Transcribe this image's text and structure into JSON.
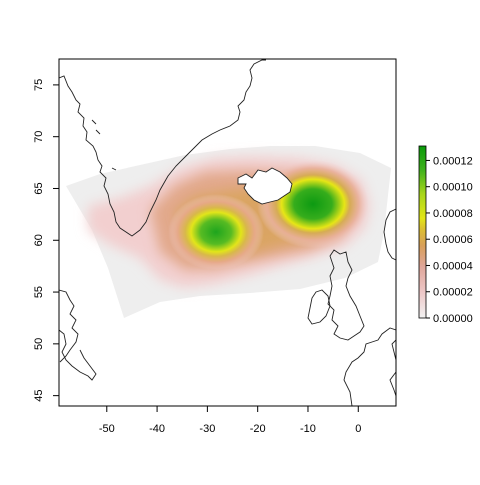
{
  "map": {
    "x_axis": {
      "ticks": [
        {
          "value": -50,
          "label": "-50"
        },
        {
          "value": -40,
          "label": "-40"
        },
        {
          "value": -30,
          "label": "-30"
        },
        {
          "value": -20,
          "label": "-20"
        },
        {
          "value": -10,
          "label": "-10"
        },
        {
          "value": 0,
          "label": "0"
        }
      ]
    },
    "y_axis": {
      "ticks": [
        {
          "value": 45,
          "label": "45"
        },
        {
          "value": 50,
          "label": "50"
        },
        {
          "value": 55,
          "label": "55"
        },
        {
          "value": 60,
          "label": "60"
        },
        {
          "value": 65,
          "label": "65"
        },
        {
          "value": 70,
          "label": "70"
        },
        {
          "value": 75,
          "label": "75"
        }
      ]
    },
    "xlim": [
      -59.5,
      7.5
    ],
    "ylim": [
      44,
      77.5
    ],
    "hotspots": [
      {
        "name": "west-hotspot",
        "lon": -29,
        "lat": 60.7,
        "intensity": 8e-05
      },
      {
        "name": "east-hotspot",
        "lon": -9.5,
        "lat": 63.2,
        "intensity": 0.00012
      }
    ],
    "colors": {
      "background_region": "#eeeeee",
      "low": "#f2cfcf",
      "mid": "#d4a25a",
      "yellow": "#e6e616",
      "high": "#14a014",
      "land_outline": "#222222"
    }
  },
  "legend": {
    "ticks": [
      {
        "value": 0.0,
        "label": "0.00000"
      },
      {
        "value": 2e-05,
        "label": "0.00002"
      },
      {
        "value": 4e-05,
        "label": "0.00004"
      },
      {
        "value": 6e-05,
        "label": "0.00006"
      },
      {
        "value": 8e-05,
        "label": "0.00008"
      },
      {
        "value": 0.0001,
        "label": "0.00010"
      },
      {
        "value": 0.00012,
        "label": "0.00012"
      }
    ],
    "range": [
      0,
      0.000131
    ]
  }
}
